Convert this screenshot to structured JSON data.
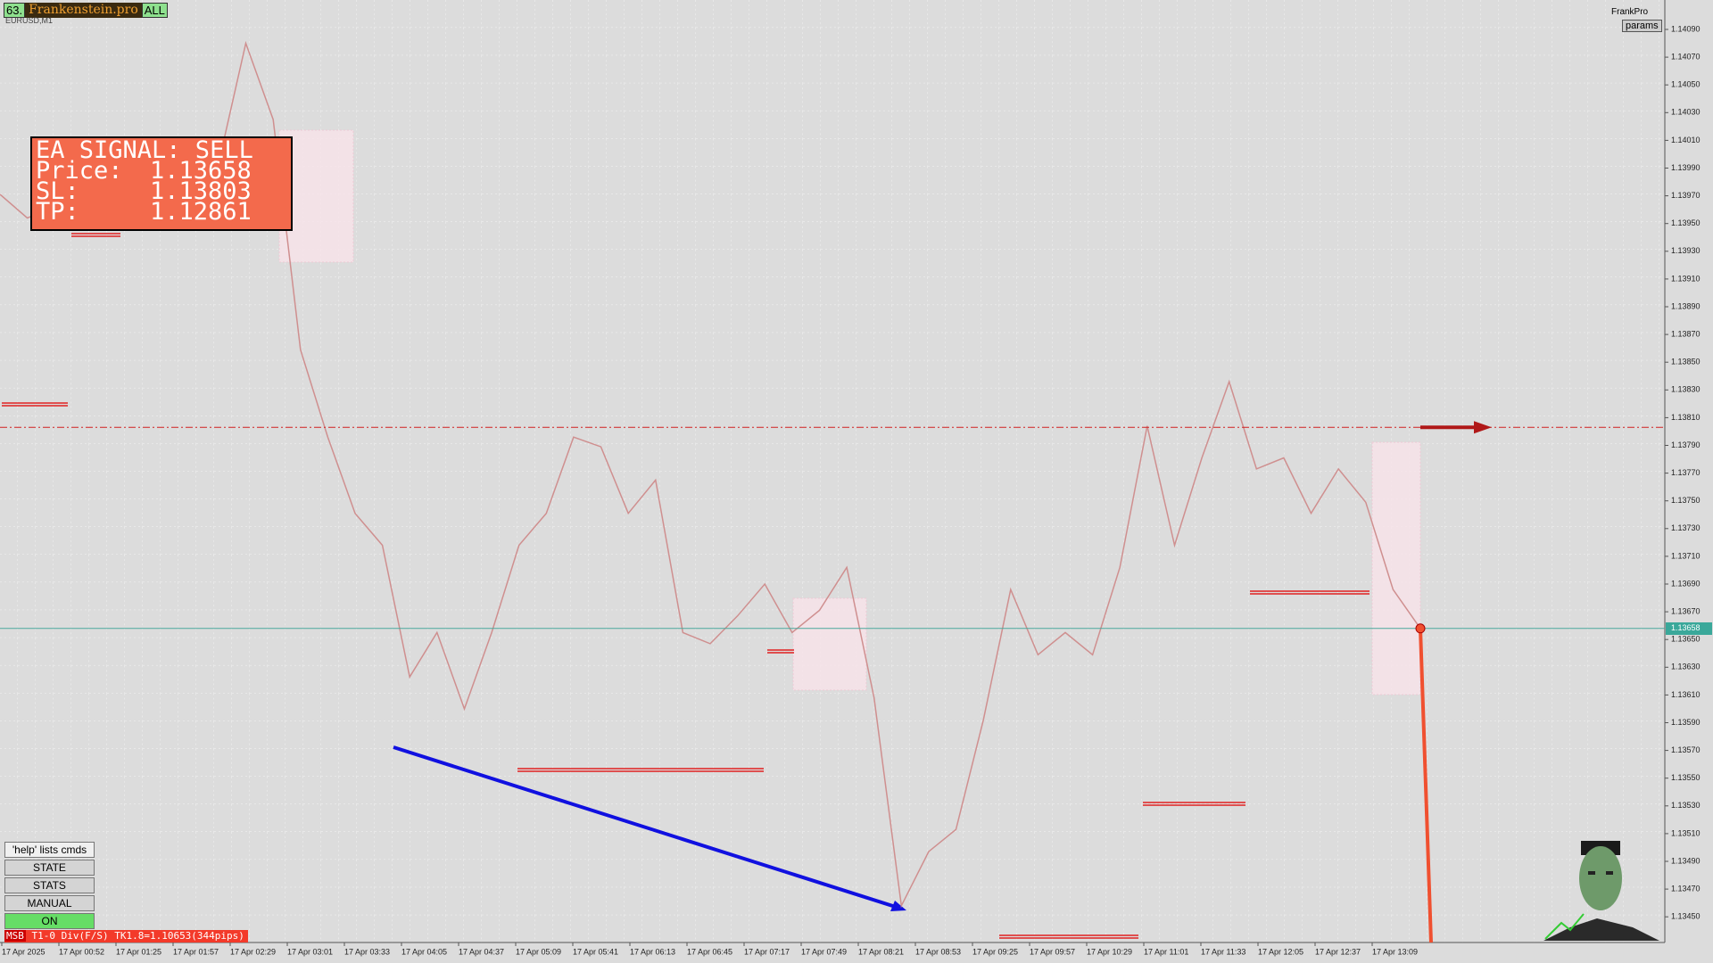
{
  "header": {
    "number_tag": "63.",
    "brand": "Frankenstein.pro",
    "mode_tag": "ALL",
    "symbol": "EURUSD,M1",
    "account": "FrankPro",
    "params_button": "params"
  },
  "signal": {
    "title": "EA SIGNAL: SELL",
    "rows": [
      {
        "label": "Price:",
        "value": "1.13658"
      },
      {
        "label": "SL:",
        "value": "1.13803"
      },
      {
        "label": "TP:",
        "value": "1.12861"
      }
    ]
  },
  "price_axis": {
    "ticks": [
      "1.14090",
      "1.14070",
      "1.14050",
      "1.14030",
      "1.14010",
      "1.13990",
      "1.13970",
      "1.13950",
      "1.13930",
      "1.13910",
      "1.13890",
      "1.13870",
      "1.13850",
      "1.13830",
      "1.13810",
      "1.13790",
      "1.13770",
      "1.13750",
      "1.13730",
      "1.13710",
      "1.13690",
      "1.13670",
      "1.13650",
      "1.13630",
      "1.13610",
      "1.13590",
      "1.13570",
      "1.13550",
      "1.13530",
      "1.13510",
      "1.13490",
      "1.13470",
      "1.13450"
    ],
    "current": "1.13658"
  },
  "time_axis": {
    "ticks": [
      "17 Apr 2025",
      "17 Apr 00:52",
      "17 Apr 01:25",
      "17 Apr 01:57",
      "17 Apr 02:29",
      "17 Apr 03:01",
      "17 Apr 03:33",
      "17 Apr 04:05",
      "17 Apr 04:37",
      "17 Apr 05:09",
      "17 Apr 05:41",
      "17 Apr 06:13",
      "17 Apr 06:45",
      "17 Apr 07:17",
      "17 Apr 07:49",
      "17 Apr 08:21",
      "17 Apr 08:53",
      "17 Apr 09:25",
      "17 Apr 09:57",
      "17 Apr 10:29",
      "17 Apr 11:01",
      "17 Apr 11:33",
      "17 Apr 12:05",
      "17 Apr 12:37",
      "17 Apr 13:09"
    ]
  },
  "price_path": [
    1.13971,
    1.13954,
    1.13962,
    1.13958,
    1.13954,
    1.13954,
    1.13954,
    1.1395,
    1.13993,
    1.1408,
    1.14025,
    1.13859,
    1.13796,
    1.13741,
    1.13718,
    1.13623,
    1.13655,
    1.136,
    1.13655,
    1.13718,
    1.13741,
    1.13796,
    1.13789,
    1.13741,
    1.13765,
    1.13655,
    1.13647,
    1.13667,
    1.1369,
    1.13655,
    1.13671,
    1.13702,
    1.13608,
    1.13458,
    1.13497,
    1.13513,
    1.13592,
    1.13686,
    1.13639,
    1.13655,
    1.13639,
    1.13702,
    1.13804,
    1.13718,
    1.13781,
    1.13836,
    1.13773,
    1.13781,
    1.13741,
    1.13773,
    1.13749,
    1.13686,
    1.13658
  ],
  "buttons": [
    "'help' lists cmds",
    "STATE",
    "STATS",
    "MANUAL",
    "ON"
  ],
  "status": {
    "tag": "MSB",
    "text": "T1-0  Div(F/S) TK1.8=1.10653(344pips)"
  }
}
